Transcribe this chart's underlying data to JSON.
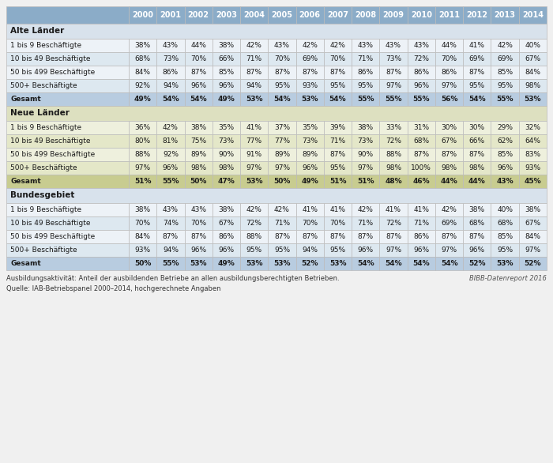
{
  "years": [
    "2000",
    "2001",
    "2002",
    "2003",
    "2004",
    "2005",
    "2006",
    "2007",
    "2008",
    "2009",
    "2010",
    "2011",
    "2012",
    "2013",
    "2014"
  ],
  "sections": [
    {
      "name": "Alte Länder",
      "header_bg": "#d8e2ec",
      "gesamt_bg": "#b8cce0",
      "rows": [
        {
          "label": "1 bis 9 Beschäftigte",
          "values": [
            "38%",
            "43%",
            "44%",
            "38%",
            "42%",
            "43%",
            "42%",
            "42%",
            "43%",
            "43%",
            "43%",
            "44%",
            "41%",
            "42%",
            "40%"
          ],
          "bold": false
        },
        {
          "label": "10 bis 49 Beschäftigte",
          "values": [
            "68%",
            "73%",
            "70%",
            "66%",
            "71%",
            "70%",
            "69%",
            "70%",
            "71%",
            "73%",
            "72%",
            "70%",
            "69%",
            "69%",
            "67%"
          ],
          "bold": false
        },
        {
          "label": "50 bis 499 Beschäftigte",
          "values": [
            "84%",
            "86%",
            "87%",
            "85%",
            "87%",
            "87%",
            "87%",
            "87%",
            "86%",
            "87%",
            "86%",
            "86%",
            "87%",
            "85%",
            "84%"
          ],
          "bold": false
        },
        {
          "label": "500+ Beschäftigte",
          "values": [
            "92%",
            "94%",
            "96%",
            "96%",
            "94%",
            "95%",
            "93%",
            "95%",
            "95%",
            "97%",
            "96%",
            "97%",
            "95%",
            "95%",
            "98%"
          ],
          "bold": false
        },
        {
          "label": "Gesamt",
          "values": [
            "49%",
            "54%",
            "54%",
            "49%",
            "53%",
            "54%",
            "53%",
            "54%",
            "55%",
            "55%",
            "55%",
            "56%",
            "54%",
            "55%",
            "53%"
          ],
          "bold": true
        }
      ]
    },
    {
      "name": "Neue Länder",
      "header_bg": "#dde0c0",
      "gesamt_bg": "#c8cc90",
      "rows": [
        {
          "label": "1 bis 9 Beschäftigte",
          "values": [
            "36%",
            "42%",
            "38%",
            "35%",
            "41%",
            "37%",
            "35%",
            "39%",
            "38%",
            "33%",
            "31%",
            "30%",
            "30%",
            "29%",
            "32%"
          ],
          "bold": false
        },
        {
          "label": "10 bis 49 Beschäftigte",
          "values": [
            "80%",
            "81%",
            "75%",
            "73%",
            "77%",
            "77%",
            "73%",
            "71%",
            "73%",
            "72%",
            "68%",
            "67%",
            "66%",
            "62%",
            "64%"
          ],
          "bold": false
        },
        {
          "label": "50 bis 499 Beschäftigte",
          "values": [
            "88%",
            "92%",
            "89%",
            "90%",
            "91%",
            "89%",
            "89%",
            "87%",
            "90%",
            "88%",
            "87%",
            "87%",
            "87%",
            "85%",
            "83%"
          ],
          "bold": false
        },
        {
          "label": "500+ Beschäftigte",
          "values": [
            "97%",
            "96%",
            "98%",
            "98%",
            "97%",
            "97%",
            "96%",
            "95%",
            "97%",
            "98%",
            "100%",
            "98%",
            "98%",
            "96%",
            "93%"
          ],
          "bold": false
        },
        {
          "label": "Gesamt",
          "values": [
            "51%",
            "55%",
            "50%",
            "47%",
            "53%",
            "50%",
            "49%",
            "51%",
            "51%",
            "48%",
            "46%",
            "44%",
            "44%",
            "43%",
            "45%"
          ],
          "bold": true
        }
      ]
    },
    {
      "name": "Bundesgebiet",
      "header_bg": "#d8e2ec",
      "gesamt_bg": "#b8cce0",
      "rows": [
        {
          "label": "1 bis 9 Beschäftigte",
          "values": [
            "38%",
            "43%",
            "43%",
            "38%",
            "42%",
            "42%",
            "41%",
            "41%",
            "42%",
            "41%",
            "41%",
            "42%",
            "38%",
            "40%",
            "38%"
          ],
          "bold": false
        },
        {
          "label": "10 bis 49 Beschäftigte",
          "values": [
            "70%",
            "74%",
            "70%",
            "67%",
            "72%",
            "71%",
            "70%",
            "70%",
            "71%",
            "72%",
            "71%",
            "69%",
            "68%",
            "68%",
            "67%"
          ],
          "bold": false
        },
        {
          "label": "50 bis 499 Beschäftigte",
          "values": [
            "84%",
            "87%",
            "87%",
            "86%",
            "88%",
            "87%",
            "87%",
            "87%",
            "87%",
            "87%",
            "86%",
            "87%",
            "87%",
            "85%",
            "84%"
          ],
          "bold": false
        },
        {
          "label": "500+ Beschäftigte",
          "values": [
            "93%",
            "94%",
            "96%",
            "96%",
            "95%",
            "95%",
            "94%",
            "95%",
            "96%",
            "97%",
            "96%",
            "97%",
            "96%",
            "95%",
            "97%"
          ],
          "bold": false
        },
        {
          "label": "Gesamt",
          "values": [
            "50%",
            "55%",
            "53%",
            "49%",
            "53%",
            "53%",
            "52%",
            "53%",
            "54%",
            "54%",
            "54%",
            "54%",
            "52%",
            "53%",
            "52%"
          ],
          "bold": true
        }
      ]
    }
  ],
  "footer_lines": [
    "Ausbildungsaktivität: Anteil der ausbildenden Betriebe an allen ausbildungsberechtigten Betrieben.",
    "Quelle: IAB-Betriebspanel 2000–2014, hochgerechnete Angaben"
  ],
  "footer_right": "BIBB-Datenreport 2016",
  "col_header_bg": "#8bacc8",
  "col_header_text": "#ffffff",
  "border_color": "#bbbbbb",
  "text_color": "#1a1a1a",
  "row_alt_bg": [
    "#f0f4f8",
    "#e4ecf4"
  ],
  "neue_row_alt_bg": [
    "#f0f2e0",
    "#e6e8d0"
  ]
}
